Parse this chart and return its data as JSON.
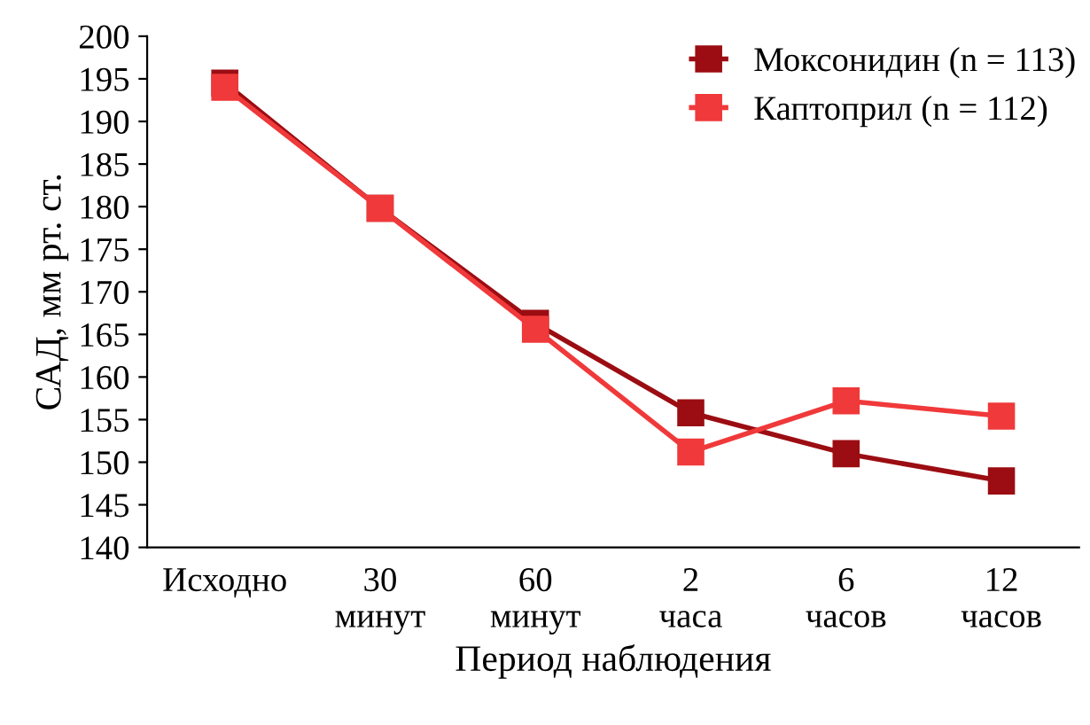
{
  "chart_data": {
    "type": "line",
    "xlabel": "Период наблюдения",
    "ylabel": "САД, мм рт. ст.",
    "categories": [
      "Исходно",
      "30\nминут",
      "60\nминут",
      "2\nчаса",
      "6\nчасов",
      "12\nчасов"
    ],
    "series": [
      {
        "name": "Моксонидин (n = 113)",
        "color": "#9b0d12",
        "values": [
          194.5,
          179.8,
          166.3,
          155.8,
          151,
          147.8
        ]
      },
      {
        "name": "Каптоприл (n = 112)",
        "color": "#f0393a",
        "values": [
          194,
          179.8,
          165.6,
          151.2,
          157.2,
          155.4
        ]
      }
    ],
    "ylim": [
      140,
      200
    ],
    "yticks": [
      140,
      145,
      150,
      155,
      160,
      165,
      170,
      175,
      180,
      185,
      190,
      195,
      200
    ],
    "grid": false,
    "legend": "top right",
    "marker": "square",
    "line_style": "solid"
  }
}
